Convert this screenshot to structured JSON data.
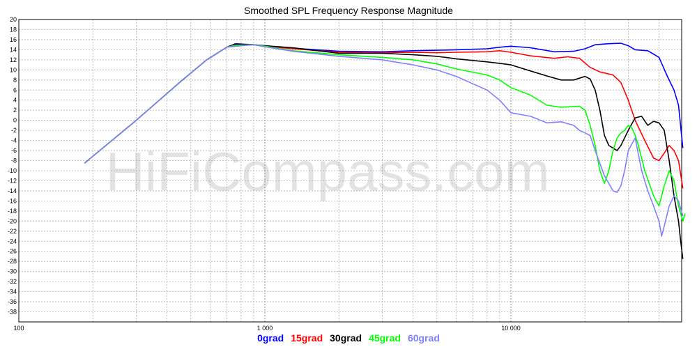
{
  "chart_data": {
    "type": "line",
    "title": "Smoothed SPL Frequency Response Magnitude",
    "watermark": "HiFiCompass.com",
    "x_scale": "log",
    "xlim": [
      100,
      50000
    ],
    "ylim": [
      -40,
      20
    ],
    "x_tick_labels": [
      {
        "value": 100,
        "label": "100"
      },
      {
        "value": 1000,
        "label": "1 000"
      },
      {
        "value": 10000,
        "label": "10 000"
      }
    ],
    "y_ticks": [
      20,
      18,
      16,
      14,
      12,
      10,
      8,
      6,
      4,
      2,
      0,
      -2,
      -4,
      -6,
      -8,
      -10,
      -12,
      -14,
      -16,
      -18,
      -20,
      -22,
      -24,
      -26,
      -28,
      -30,
      -32,
      -34,
      -36,
      -38
    ],
    "grid": true,
    "legend_placement": "bottom",
    "series": [
      {
        "name": "0grad",
        "color": "#0000ff",
        "points": [
          [
            185,
            -8.5
          ],
          [
            300,
            0
          ],
          [
            450,
            7.5
          ],
          [
            580,
            12
          ],
          [
            700,
            14.5
          ],
          [
            760,
            15.2
          ],
          [
            900,
            15
          ],
          [
            1000,
            14.7
          ],
          [
            1300,
            14.3
          ],
          [
            2000,
            13.7
          ],
          [
            3000,
            13.6
          ],
          [
            4000,
            13.8
          ],
          [
            5000,
            13.9
          ],
          [
            6000,
            14
          ],
          [
            8000,
            14.2
          ],
          [
            9000,
            14.5
          ],
          [
            10000,
            14.7
          ],
          [
            12000,
            14.4
          ],
          [
            15000,
            13.6
          ],
          [
            18000,
            13.7
          ],
          [
            20000,
            14.2
          ],
          [
            22000,
            15
          ],
          [
            25000,
            15.2
          ],
          [
            28000,
            15.3
          ],
          [
            30000,
            14.8
          ],
          [
            32000,
            14
          ],
          [
            36000,
            13.8
          ],
          [
            40000,
            12.5
          ],
          [
            43000,
            9
          ],
          [
            46000,
            6
          ],
          [
            48000,
            3
          ],
          [
            50000,
            -5.5
          ]
        ]
      },
      {
        "name": "15grad",
        "color": "#ff0000",
        "points": [
          [
            185,
            -8.5
          ],
          [
            300,
            0
          ],
          [
            450,
            7.5
          ],
          [
            580,
            12
          ],
          [
            700,
            14.5
          ],
          [
            760,
            15.1
          ],
          [
            900,
            15
          ],
          [
            1000,
            14.7
          ],
          [
            1300,
            14.2
          ],
          [
            2000,
            13.5
          ],
          [
            3000,
            13.4
          ],
          [
            4000,
            13.5
          ],
          [
            5000,
            13.4
          ],
          [
            6000,
            13.5
          ],
          [
            8000,
            13.6
          ],
          [
            9000,
            13.8
          ],
          [
            10000,
            13.5
          ],
          [
            12000,
            12.8
          ],
          [
            15000,
            12.3
          ],
          [
            17000,
            12.6
          ],
          [
            19000,
            12.3
          ],
          [
            21000,
            10.5
          ],
          [
            23000,
            9.6
          ],
          [
            26000,
            9
          ],
          [
            28000,
            7.5
          ],
          [
            30000,
            4
          ],
          [
            32000,
            0
          ],
          [
            35000,
            -4
          ],
          [
            38000,
            -7.5
          ],
          [
            40000,
            -8
          ],
          [
            42000,
            -6.5
          ],
          [
            44000,
            -5
          ],
          [
            46000,
            -6
          ],
          [
            48000,
            -8
          ],
          [
            50000,
            -13.5
          ]
        ]
      },
      {
        "name": "30grad",
        "color": "#000000",
        "points": [
          [
            185,
            -8.5
          ],
          [
            300,
            0
          ],
          [
            450,
            7.5
          ],
          [
            580,
            12
          ],
          [
            700,
            14.5
          ],
          [
            760,
            15.1
          ],
          [
            900,
            15
          ],
          [
            1000,
            14.8
          ],
          [
            1300,
            14.4
          ],
          [
            2000,
            13.3
          ],
          [
            3000,
            13.3
          ],
          [
            4000,
            13
          ],
          [
            5000,
            12.7
          ],
          [
            6000,
            12.2
          ],
          [
            8000,
            11.6
          ],
          [
            9000,
            11.3
          ],
          [
            10000,
            11
          ],
          [
            12000,
            9.8
          ],
          [
            14000,
            8.8
          ],
          [
            16000,
            8
          ],
          [
            18000,
            8
          ],
          [
            20000,
            8.7
          ],
          [
            21000,
            8.2
          ],
          [
            22000,
            6
          ],
          [
            23000,
            2
          ],
          [
            24000,
            -3
          ],
          [
            25000,
            -5
          ],
          [
            26000,
            -5.5
          ],
          [
            27000,
            -6
          ],
          [
            28000,
            -5
          ],
          [
            30000,
            -2
          ],
          [
            32000,
            0.5
          ],
          [
            34000,
            0.8
          ],
          [
            36000,
            -1
          ],
          [
            38000,
            -0.2
          ],
          [
            40000,
            -0.5
          ],
          [
            42000,
            -2
          ],
          [
            44000,
            -8
          ],
          [
            46000,
            -15
          ],
          [
            48000,
            -20
          ],
          [
            49000,
            -24
          ],
          [
            50000,
            -27.5
          ]
        ]
      },
      {
        "name": "45grad",
        "color": "#00ff00",
        "points": [
          [
            185,
            -8.5
          ],
          [
            300,
            0
          ],
          [
            450,
            7.5
          ],
          [
            580,
            12
          ],
          [
            700,
            14.5
          ],
          [
            760,
            14.9
          ],
          [
            900,
            15
          ],
          [
            1000,
            14.7
          ],
          [
            1300,
            13.8
          ],
          [
            2000,
            13
          ],
          [
            3000,
            12.5
          ],
          [
            4000,
            12
          ],
          [
            5000,
            11.2
          ],
          [
            6000,
            10.2
          ],
          [
            8000,
            9
          ],
          [
            9000,
            8
          ],
          [
            10000,
            6.5
          ],
          [
            12000,
            5
          ],
          [
            14000,
            3
          ],
          [
            16000,
            2.6
          ],
          [
            19000,
            2.8
          ],
          [
            20000,
            2
          ],
          [
            21000,
            -1
          ],
          [
            22000,
            -5
          ],
          [
            23000,
            -10
          ],
          [
            24000,
            -12.5
          ],
          [
            25000,
            -10
          ],
          [
            26000,
            -6
          ],
          [
            27000,
            -3.5
          ],
          [
            28000,
            -2.5
          ],
          [
            29000,
            -2
          ],
          [
            30000,
            -1
          ],
          [
            31000,
            -1.5
          ],
          [
            32000,
            -3
          ],
          [
            33000,
            -5
          ],
          [
            35000,
            -10
          ],
          [
            38000,
            -15
          ],
          [
            40000,
            -17
          ],
          [
            42000,
            -13
          ],
          [
            44000,
            -10
          ],
          [
            46000,
            -12
          ],
          [
            48000,
            -17
          ],
          [
            50000,
            -20
          ],
          [
            51000,
            -18.5
          ]
        ]
      },
      {
        "name": "60grad",
        "color": "#8080ff",
        "points": [
          [
            185,
            -8.5
          ],
          [
            300,
            0
          ],
          [
            450,
            7.5
          ],
          [
            580,
            12
          ],
          [
            700,
            14.5
          ],
          [
            760,
            14.7
          ],
          [
            900,
            15
          ],
          [
            1000,
            14.6
          ],
          [
            1300,
            13.7
          ],
          [
            2000,
            12.7
          ],
          [
            3000,
            12
          ],
          [
            4000,
            11
          ],
          [
            5000,
            10
          ],
          [
            6000,
            8.7
          ],
          [
            8000,
            6
          ],
          [
            9000,
            4
          ],
          [
            10000,
            1.5
          ],
          [
            12000,
            0.8
          ],
          [
            14000,
            -0.5
          ],
          [
            16000,
            -0.3
          ],
          [
            18000,
            -1
          ],
          [
            19000,
            -2
          ],
          [
            20000,
            -2.5
          ],
          [
            21000,
            -3
          ],
          [
            22000,
            -6
          ],
          [
            24000,
            -11
          ],
          [
            26000,
            -14
          ],
          [
            27000,
            -14.3
          ],
          [
            28000,
            -13
          ],
          [
            29000,
            -10
          ],
          [
            30000,
            -6
          ],
          [
            32000,
            -3.5
          ],
          [
            34000,
            -10
          ],
          [
            36000,
            -14
          ],
          [
            38000,
            -17
          ],
          [
            40000,
            -20
          ],
          [
            41000,
            -23
          ],
          [
            42000,
            -21
          ],
          [
            44000,
            -17
          ],
          [
            46000,
            -15
          ],
          [
            48000,
            -16
          ],
          [
            50000,
            -19
          ]
        ]
      }
    ]
  }
}
